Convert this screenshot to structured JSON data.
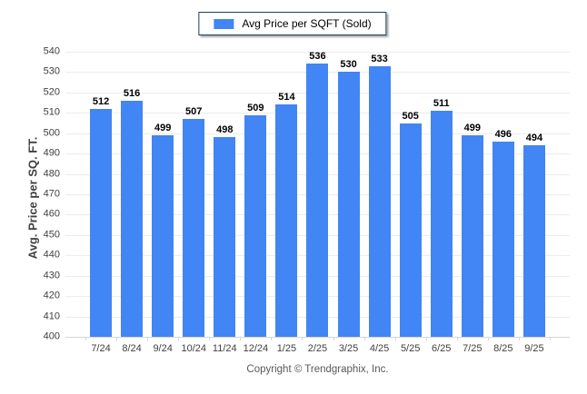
{
  "chart_data": {
    "type": "bar",
    "title": "",
    "legend": "Avg Price per SQFT (Sold)",
    "categories": [
      "7/24",
      "8/24",
      "9/24",
      "10/24",
      "11/24",
      "12/24",
      "1/25",
      "2/25",
      "3/25",
      "4/25",
      "5/25",
      "6/25",
      "7/25",
      "8/25",
      "9/25"
    ],
    "values": [
      512,
      516,
      499,
      507,
      498,
      509,
      514,
      536,
      530,
      533,
      505,
      511,
      499,
      496,
      494
    ],
    "xlabel": "",
    "ylabel": "Avg. Price per SQ. FT.",
    "ylim": [
      400,
      540
    ],
    "ytick_step": 10,
    "grid": "horizontal",
    "legend_position": "top-center",
    "value_labels": "above-bars"
  },
  "footer": {
    "copyright": "Copyright © Trendgraphix, Inc."
  },
  "colors": {
    "bar": "#4285f4",
    "legend_border": "#1c3c5e",
    "grid": "#ececec",
    "axis_line": "#d6d6d6",
    "axis_text": "#404040",
    "value_text": "#000000",
    "footer_text": "#595959"
  }
}
